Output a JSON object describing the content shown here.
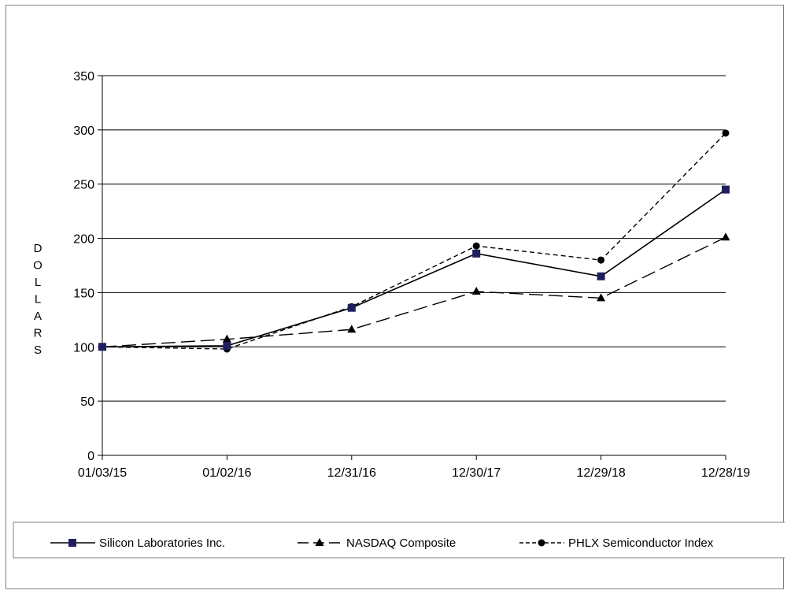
{
  "chart_data": {
    "type": "line",
    "title": "",
    "xlabel": "",
    "ylabel": "DOLLARS",
    "ylim": [
      0,
      350
    ],
    "yticks": [
      "0",
      "50",
      "100",
      "150",
      "200",
      "250",
      "300",
      "350"
    ],
    "ytick_values": [
      0,
      50,
      100,
      150,
      200,
      250,
      300,
      350
    ],
    "categories": [
      "01/03/15",
      "01/02/16",
      "12/31/16",
      "12/30/17",
      "12/29/18",
      "12/28/19"
    ],
    "grid": "horizontal",
    "legend_position": "bottom",
    "series": [
      {
        "name": "Silicon Laboratories Inc.",
        "values": [
          100,
          101,
          136,
          186,
          165,
          245
        ],
        "color": "#1f1f5f",
        "line": "solid",
        "marker": "square"
      },
      {
        "name": "NASDAQ Composite",
        "values": [
          100,
          107,
          116,
          151,
          145,
          201
        ],
        "color": "#000000",
        "line": "long-dash",
        "marker": "triangle"
      },
      {
        "name": "PHLX Semiconductor Index",
        "values": [
          100,
          98,
          137,
          193,
          180,
          297
        ],
        "color": "#000000",
        "line": "short-dash",
        "marker": "circle"
      }
    ]
  }
}
